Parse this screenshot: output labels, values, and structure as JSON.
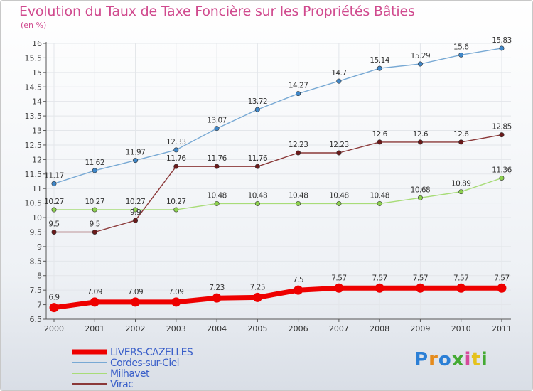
{
  "header": {
    "title": "Evolution du Taux de Taxe Foncière sur les Propriétés Bâties",
    "unit": "(en %)"
  },
  "logo": {
    "text": "Proxiti",
    "colors": [
      "#2b7fd6",
      "#e58b1c",
      "#2b7fd6",
      "#44aa33",
      "#d64a9b",
      "#e5c21c",
      "#44aa33"
    ]
  },
  "chart_data": {
    "type": "line",
    "x": [
      "2000",
      "2001",
      "2002",
      "2003",
      "2004",
      "2005",
      "2006",
      "2007",
      "2008",
      "2009",
      "2010",
      "2011"
    ],
    "ylim": [
      6.5,
      16
    ],
    "yticks": [
      "6.5",
      "7",
      "7.5",
      "8",
      "8.5",
      "9",
      "9.5",
      "10",
      "10.5",
      "11",
      "11.5",
      "12",
      "12.5",
      "13",
      "13.5",
      "14",
      "14.5",
      "15",
      "15.5",
      "16"
    ],
    "grid": true,
    "legend_position": "bottom-left",
    "series": [
      {
        "name": "LIVERS-CAZELLES",
        "color": "#ee0000",
        "marker": "#ee0000",
        "width": 7,
        "values": [
          6.9,
          7.09,
          7.09,
          7.09,
          7.23,
          7.25,
          7.5,
          7.57,
          7.57,
          7.57,
          7.57,
          7.57
        ],
        "labels": [
          "6.9",
          "7.09",
          "7.09",
          "7.09",
          "7.23",
          "7.25",
          "7.5",
          "7.57",
          "7.57",
          "7.57",
          "7.57",
          "7.57"
        ]
      },
      {
        "name": "Cordes-sur-Ciel",
        "color": "#78a9d4",
        "marker": "#3f87c9",
        "width": 1.4,
        "values": [
          11.17,
          11.62,
          11.97,
          12.33,
          13.07,
          13.72,
          14.27,
          14.7,
          15.14,
          15.29,
          15.6,
          15.83
        ],
        "labels": [
          "11.17",
          "11.62",
          "11.97",
          "12.33",
          "13.07",
          "13.72",
          "14.27",
          "14.7",
          "15.14",
          "15.29",
          "15.6",
          "15.83"
        ]
      },
      {
        "name": "Milhavet",
        "color": "#a8dc78",
        "marker": "#8dd14f",
        "width": 1.4,
        "values": [
          10.27,
          10.27,
          10.27,
          10.27,
          10.48,
          10.48,
          10.48,
          10.48,
          10.48,
          10.68,
          10.89,
          11.36
        ],
        "labels": [
          "10.27",
          "10.27",
          "10.27",
          "10.27",
          "10.48",
          "10.48",
          "10.48",
          "10.48",
          "10.48",
          "10.68",
          "10.89",
          "11.36"
        ]
      },
      {
        "name": "Virac",
        "color": "#8a3838",
        "marker": "#6b1a1a",
        "width": 1.4,
        "values": [
          9.5,
          9.5,
          9.9,
          11.76,
          11.76,
          11.76,
          12.23,
          12.23,
          12.6,
          12.6,
          12.6,
          12.85
        ],
        "labels": [
          "9.5",
          "9.5",
          "9.9",
          "11.76",
          "11.76",
          "11.76",
          "12.23",
          "12.23",
          "12.6",
          "12.6",
          "12.6",
          "12.85"
        ]
      }
    ]
  }
}
